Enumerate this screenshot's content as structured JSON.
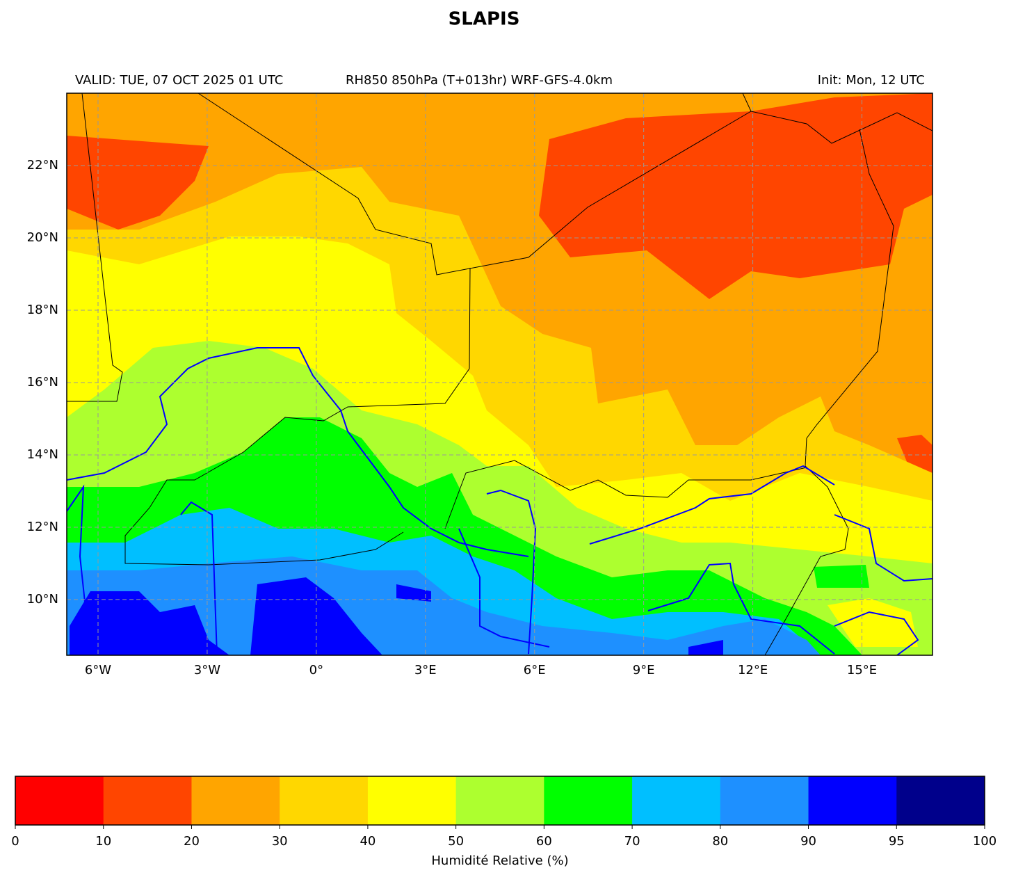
{
  "title": "SLAPIS",
  "valid": "VALID: TUE, 07 OCT 2025 01 UTC",
  "product": "RH850 850hPa (T+013hr) WRF-GFS-4.0km",
  "init": "Init: Mon, 12 UTC",
  "map": {
    "xlim": [
      -6.86,
      16.94
    ],
    "ylim": [
      8.46,
      24
    ],
    "grid": true,
    "xticks": [
      {
        "value": -6,
        "label": "6°W"
      },
      {
        "value": -3,
        "label": "3°W"
      },
      {
        "value": 0,
        "label": "0°"
      },
      {
        "value": 3,
        "label": "3°E"
      },
      {
        "value": 6,
        "label": "6°E"
      },
      {
        "value": 9,
        "label": "9°E"
      },
      {
        "value": 12,
        "label": "12°E"
      },
      {
        "value": 15,
        "label": "15°E"
      }
    ],
    "yticks": [
      {
        "value": 10,
        "label": "10°N"
      },
      {
        "value": 12,
        "label": "12°N"
      },
      {
        "value": 14,
        "label": "14°N"
      },
      {
        "value": 16,
        "label": "16°N"
      },
      {
        "value": 18,
        "label": "18°N"
      },
      {
        "value": 20,
        "label": "20°N"
      },
      {
        "value": 22,
        "label": "22°N"
      }
    ]
  },
  "colorbar": {
    "label": "Humidité Relative (%)",
    "bounds": [
      0,
      10,
      20,
      30,
      40,
      50,
      60,
      70,
      80,
      90,
      95,
      100
    ],
    "colors": [
      "#ff0000",
      "#ff4500",
      "#ffa500",
      "#ffd700",
      "#ffff00",
      "#adff2f",
      "#00ff00",
      "#00bfff",
      "#1e90ff",
      "#0000ff",
      "#00008b"
    ]
  }
}
